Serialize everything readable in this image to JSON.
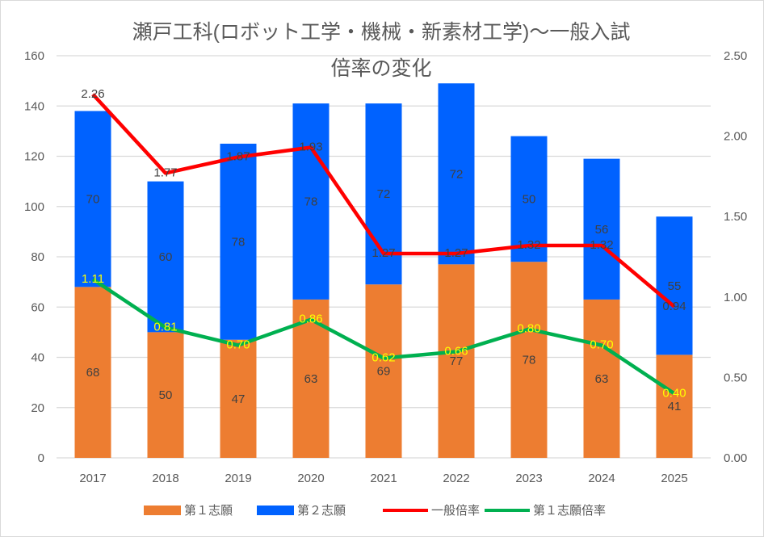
{
  "chart_data": {
    "type": "bar",
    "title": [
      "瀬戸工科(ロボット工学・機械・新素材工学)〜一般入試",
      "倍率の変化"
    ],
    "categories": [
      "2017",
      "2018",
      "2019",
      "2020",
      "2021",
      "2022",
      "2023",
      "2024",
      "2025"
    ],
    "ylim_left": [
      0,
      160
    ],
    "yticks_left": [
      "0",
      "20",
      "40",
      "60",
      "80",
      "100",
      "120",
      "140",
      "160"
    ],
    "ylim_right": [
      0,
      2.5
    ],
    "yticks_right": [
      "0.00",
      "0.50",
      "1.00",
      "1.50",
      "2.00",
      "2.50"
    ],
    "grid": true,
    "legend_position": "bottom",
    "series": [
      {
        "name": "第１志願",
        "type": "stacked-bar",
        "axis": "left",
        "color": "#ed7d31",
        "values": [
          68,
          50,
          47,
          63,
          69,
          77,
          78,
          63,
          41
        ]
      },
      {
        "name": "第２志願",
        "type": "stacked-bar",
        "axis": "left",
        "color": "#0062ff",
        "values": [
          70,
          60,
          78,
          78,
          72,
          72,
          50,
          56,
          55
        ]
      },
      {
        "name": "一般倍率",
        "type": "line",
        "axis": "right",
        "color": "#ff0000",
        "values": [
          2.26,
          1.77,
          1.87,
          1.93,
          1.27,
          1.27,
          1.32,
          1.32,
          0.94
        ],
        "labels": [
          "2.26",
          "1.77",
          "1.87",
          "1.93",
          "1.27",
          "1.27",
          "1.32",
          "1.32",
          "0.94"
        ]
      },
      {
        "name": "第１志願倍率",
        "type": "line",
        "axis": "right",
        "color": "#00b050",
        "values": [
          1.11,
          0.81,
          0.7,
          0.86,
          0.62,
          0.66,
          0.8,
          0.7,
          0.4
        ],
        "labels": [
          "1.11",
          "0.81",
          "0.70",
          "0.86",
          "0.62",
          "0.66",
          "0.80",
          "0.70",
          "0.40"
        ]
      }
    ]
  }
}
